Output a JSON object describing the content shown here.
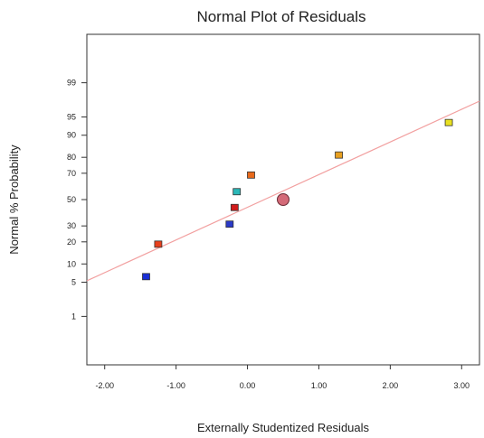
{
  "chart_data": {
    "type": "scatter",
    "title": "Normal Plot of Residuals",
    "xlabel": "Externally Studentized Residuals",
    "ylabel": "Normal % Probability",
    "xlim": [
      -2.25,
      3.25
    ],
    "ylim_percent": [
      0.05,
      99.95
    ],
    "y_scale": "normal-probability",
    "grid": false,
    "x_ticks": [
      {
        "value": -2,
        "label": "-2.00"
      },
      {
        "value": -1,
        "label": "-1.00"
      },
      {
        "value": 0,
        "label": "0.00"
      },
      {
        "value": 1,
        "label": "1.00"
      },
      {
        "value": 2,
        "label": "2.00"
      },
      {
        "value": 3,
        "label": "3.00"
      }
    ],
    "y_ticks": [
      {
        "value": 1,
        "label": "1"
      },
      {
        "value": 5,
        "label": "5"
      },
      {
        "value": 10,
        "label": "10"
      },
      {
        "value": 20,
        "label": "20"
      },
      {
        "value": 30,
        "label": "30"
      },
      {
        "value": 50,
        "label": "50"
      },
      {
        "value": 70,
        "label": "70"
      },
      {
        "value": 80,
        "label": "80"
      },
      {
        "value": 90,
        "label": "90"
      },
      {
        "value": 95,
        "label": "95"
      },
      {
        "value": 99,
        "label": "99"
      }
    ],
    "reference_line": {
      "x": [
        -2.25,
        3.25
      ],
      "y_percent": [
        5.3,
        97.5
      ],
      "color": "#f2a0a0"
    },
    "points": [
      {
        "x": -1.42,
        "y": 6.25,
        "color": "#1a2fd6",
        "marker": "square"
      },
      {
        "x": -1.25,
        "y": 18.75,
        "color": "#e8401c",
        "marker": "square"
      },
      {
        "x": -0.25,
        "y": 31.25,
        "color": "#2a3ac8",
        "marker": "square"
      },
      {
        "x": -0.18,
        "y": 43.75,
        "color": "#d01c1c",
        "marker": "square"
      },
      {
        "x": -0.15,
        "y": 56.25,
        "color": "#2ab8b8",
        "marker": "square"
      },
      {
        "x": 0.05,
        "y": 68.75,
        "color": "#e86a1c",
        "marker": "square"
      },
      {
        "x": 0.5,
        "y": 50.0,
        "color": "#d46a78",
        "marker": "circle"
      },
      {
        "x": 1.28,
        "y": 81.25,
        "color": "#e8a020",
        "marker": "square"
      },
      {
        "x": 2.82,
        "y": 93.75,
        "color": "#e8e020",
        "marker": "square"
      }
    ]
  }
}
